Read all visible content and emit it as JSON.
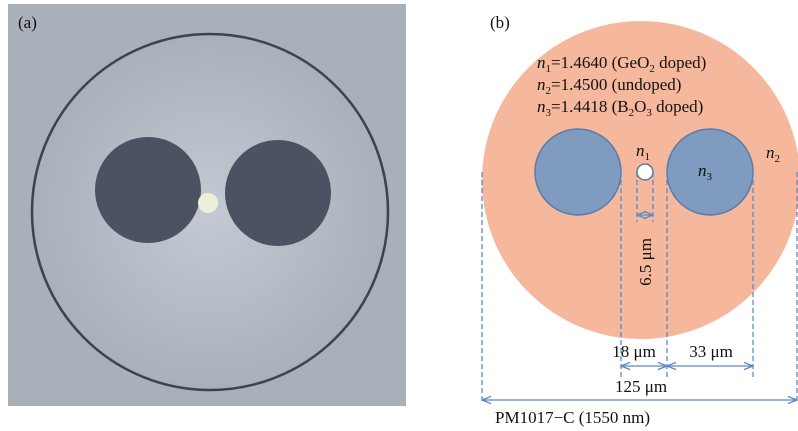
{
  "panels": {
    "a": "(a)",
    "b": "(b)"
  },
  "legend": [
    [
      "n",
      "1",
      "=1.4640 (GeO",
      "2",
      " doped)"
    ],
    [
      "n",
      "2",
      "=1.4500 (undoped)"
    ],
    [
      "n",
      "3",
      "=1.4418 (B",
      "2",
      "O",
      "3",
      " doped)"
    ]
  ],
  "labels": {
    "core": [
      "n",
      "1"
    ],
    "stress": [
      "n",
      "3"
    ],
    "cladding": [
      "n",
      "2"
    ]
  },
  "dimensions": {
    "core_diameter": "6.5 μm",
    "gap": "18 μm",
    "stress_diameter": "33 μm",
    "cladding_diameter": "125 μm"
  },
  "caption": "PM1017−C (1550 nm)"
}
